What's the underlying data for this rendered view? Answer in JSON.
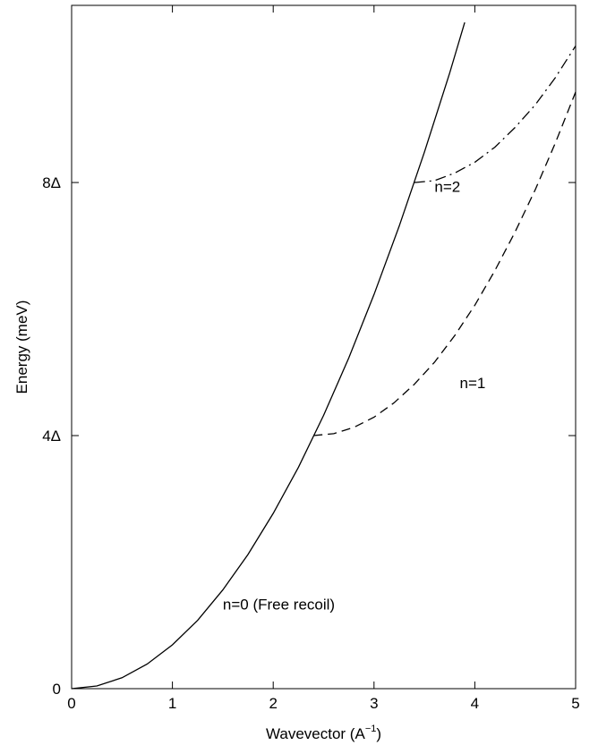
{
  "chart_data": {
    "type": "line",
    "xlabel": "Wavevector  (A",
    "xlabel_sup": "−1",
    "xlabel_close": ")",
    "ylabel": "Energy  (meV)",
    "xlim": [
      0,
      5
    ],
    "ylim": [
      0,
      10.8
    ],
    "x_ticks": [
      0,
      1,
      2,
      3,
      4,
      5
    ],
    "x_tick_labels": [
      "0",
      "1",
      "2",
      "3",
      "4",
      "5"
    ],
    "y_ticks": [
      0,
      4,
      8
    ],
    "y_tick_labels": [
      "0",
      "4Δ",
      "8Δ"
    ],
    "grid": false,
    "series": [
      {
        "name": "n=0 (Free recoil)",
        "style": "solid",
        "x": [
          0,
          0.25,
          0.5,
          0.75,
          1.0,
          1.25,
          1.5,
          1.75,
          2.0,
          2.25,
          2.5,
          2.75,
          3.0,
          3.25,
          3.5,
          3.75,
          3.9
        ],
        "y": [
          0,
          0.043,
          0.173,
          0.389,
          0.692,
          1.08,
          1.56,
          2.12,
          2.77,
          3.5,
          4.32,
          5.23,
          6.23,
          7.31,
          8.48,
          9.73,
          10.53
        ]
      },
      {
        "name": "n=1",
        "style": "dashed",
        "x": [
          2.4,
          2.6,
          2.8,
          3.0,
          3.2,
          3.4,
          3.6,
          3.8,
          4.0,
          4.2,
          4.4,
          4.6,
          4.8,
          5.0
        ],
        "y": [
          4.0,
          4.03,
          4.13,
          4.29,
          4.52,
          4.81,
          5.16,
          5.58,
          6.06,
          6.61,
          7.22,
          7.89,
          8.63,
          9.43
        ]
      },
      {
        "name": "n=2",
        "style": "dash-dot",
        "x": [
          3.4,
          3.6,
          3.8,
          4.0,
          4.2,
          4.4,
          4.6,
          4.8,
          5.0
        ],
        "y": [
          8.0,
          8.03,
          8.15,
          8.32,
          8.56,
          8.87,
          9.23,
          9.66,
          10.16
        ]
      }
    ],
    "annotations": [
      {
        "text": "n=0 (Free recoil)",
        "x": 1.5,
        "y": 1.25
      },
      {
        "text": "n=1",
        "x": 3.85,
        "y": 4.75
      },
      {
        "text": "n=2",
        "x": 3.6,
        "y": 7.85
      }
    ]
  }
}
